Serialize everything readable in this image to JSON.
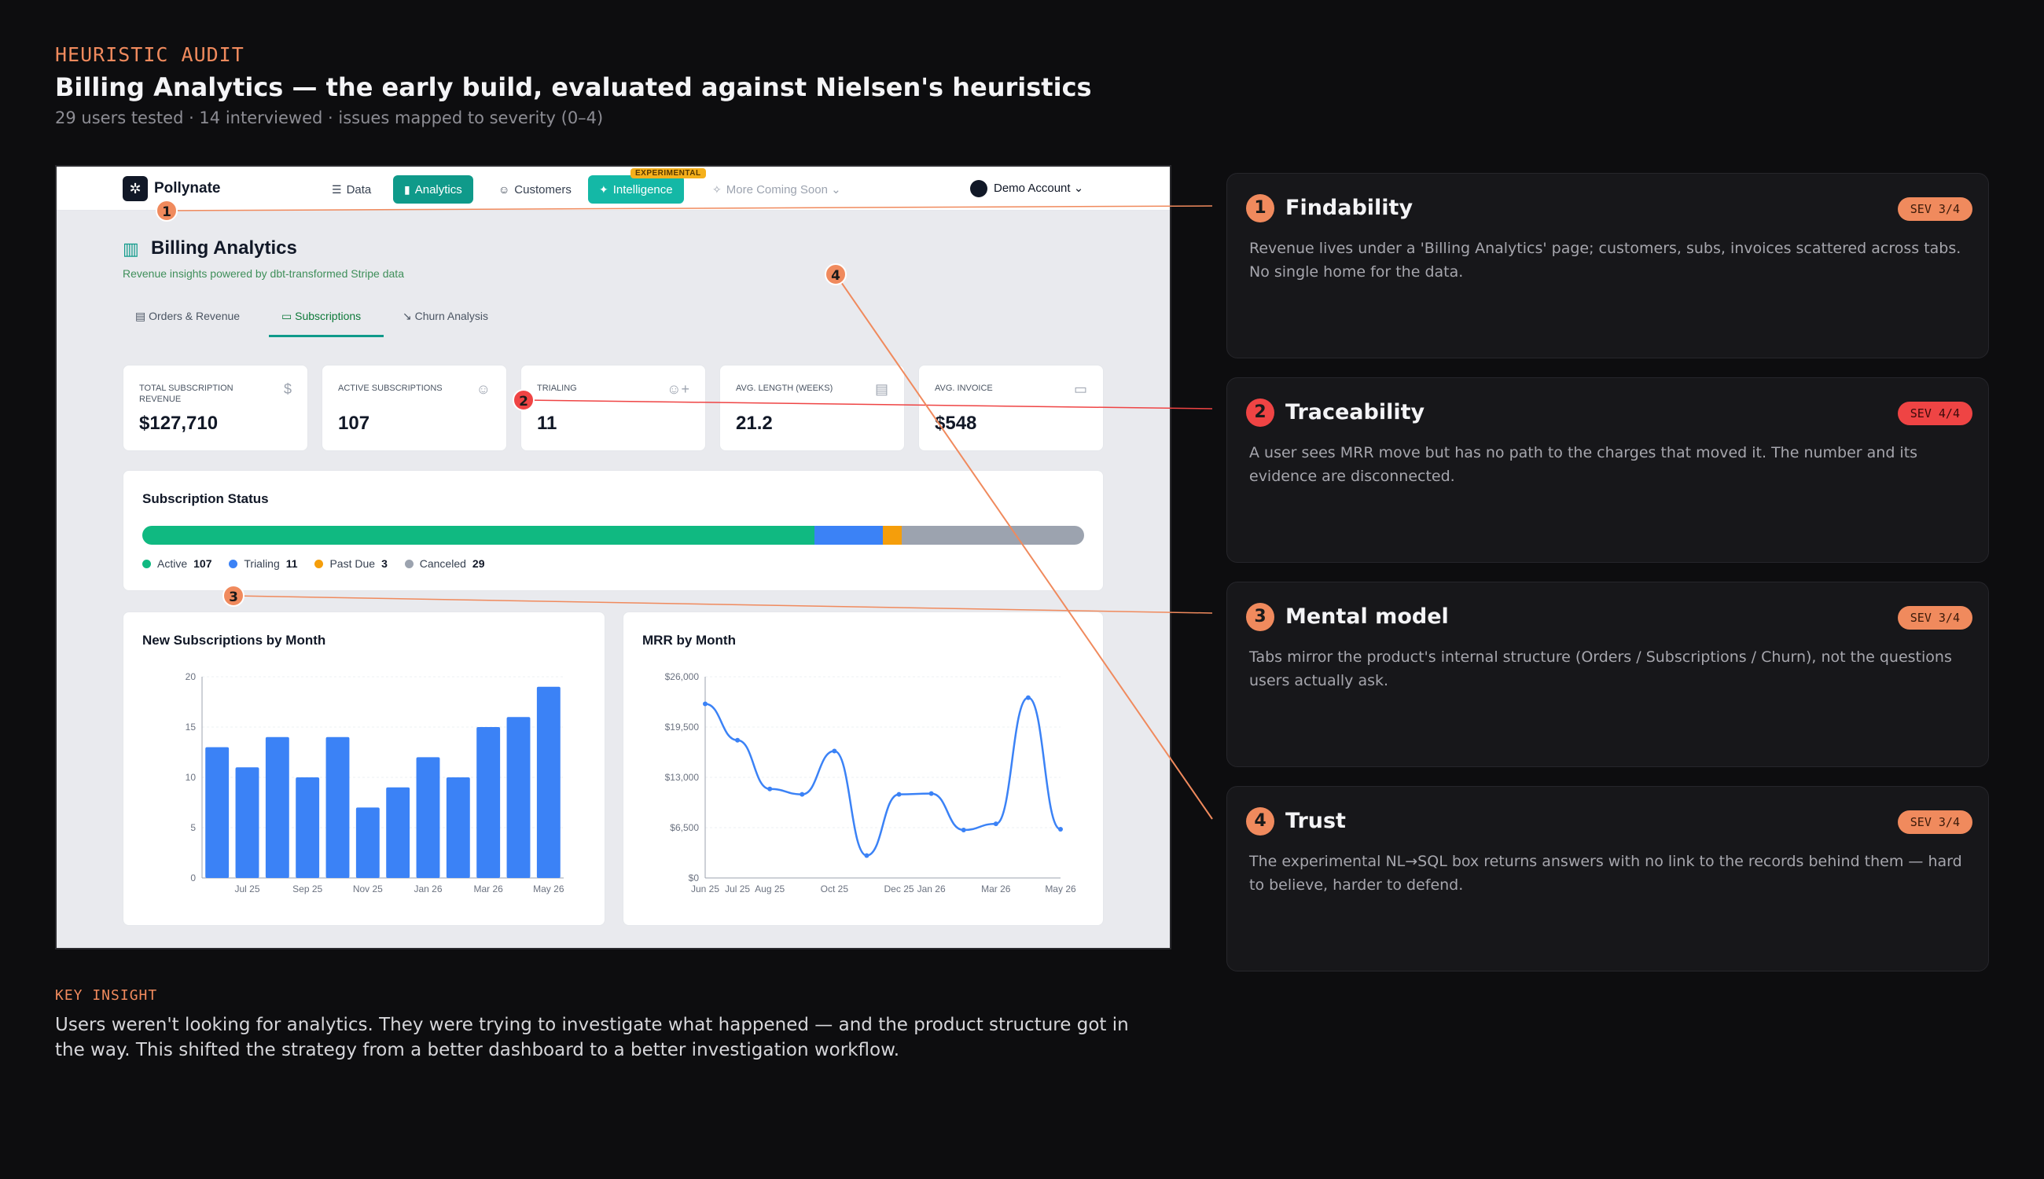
{
  "header": {
    "eyebrow": "HEURISTIC AUDIT",
    "title": "Billing Analytics — the early build, evaluated against Nielsen's heuristics",
    "subtitle": "29 users tested · 14 interviewed · issues mapped to severity (0–4)"
  },
  "app": {
    "logo": "Pollynate",
    "nav": {
      "data": "Data",
      "analytics": "Analytics",
      "customers": "Customers",
      "intelligence": "Intelligence",
      "experimental_badge": "EXPERIMENTAL",
      "more": "More Coming Soon",
      "account": "Demo Account"
    },
    "page_title": "Billing Analytics",
    "page_subtitle": "Revenue insights powered by dbt-transformed Stripe data",
    "tabs": {
      "orders": "Orders & Revenue",
      "subscriptions": "Subscriptions",
      "churn": "Churn Analysis"
    },
    "kpis": [
      {
        "label": "Total Subscription Revenue",
        "value": "$127,710",
        "icon": "dollar-icon"
      },
      {
        "label": "Active Subscriptions",
        "value": "107",
        "icon": "users-icon"
      },
      {
        "label": "Trialing",
        "value": "11",
        "icon": "user-plus-icon"
      },
      {
        "label": "Avg. Length (Weeks)",
        "value": "21.2",
        "icon": "document-icon"
      },
      {
        "label": "Avg. Invoice",
        "value": "$548",
        "icon": "card-icon"
      }
    ],
    "status": {
      "title": "Subscription Status",
      "segments": [
        {
          "name": "Active",
          "value": 107,
          "color": "#10b981"
        },
        {
          "name": "Trialing",
          "value": 11,
          "color": "#3b82f6"
        },
        {
          "name": "Past Due",
          "value": 3,
          "color": "#f59e0b"
        },
        {
          "name": "Canceled",
          "value": 29,
          "color": "#9ca3af"
        }
      ],
      "labels": {
        "active": "Active",
        "active_v": "107",
        "trialing": "Trialing",
        "trialing_v": "11",
        "pastdue": "Past Due",
        "pastdue_v": "3",
        "canceled": "Canceled",
        "canceled_v": "29"
      }
    }
  },
  "chart_data": [
    {
      "type": "bar",
      "title": "New Subscriptions by Month",
      "categories": [
        "Jun 25",
        "Jul 25",
        "Aug 25",
        "Sep 25",
        "Oct 25",
        "Nov 25",
        "Dec 25",
        "Jan 26",
        "Feb 26",
        "Mar 26",
        "Apr 26",
        "May 26"
      ],
      "tick_labels": [
        "Jul 25",
        "Sep 25",
        "Nov 25",
        "Jan 26",
        "Mar 26",
        "May 26"
      ],
      "values": [
        13,
        11,
        14,
        10,
        14,
        7,
        9,
        12,
        10,
        15,
        16,
        19
      ],
      "ylim": [
        0,
        20
      ],
      "yticks": [
        0,
        5,
        10,
        15,
        20
      ],
      "color": "#3b82f6"
    },
    {
      "type": "line",
      "title": "MRR by Month",
      "x_tick_labels": [
        "Jun 25",
        "Jul 25",
        "Aug 25",
        "Oct 25",
        "Dec 25",
        "Jan 26",
        "Mar 26",
        "May 26"
      ],
      "values": [
        22500,
        17800,
        11500,
        10800,
        16400,
        2900,
        10800,
        10900,
        6200,
        7000,
        23300,
        6300
      ],
      "ylim": [
        0,
        26000
      ],
      "ytick_labels": [
        "$0",
        "$6,500",
        "$13,000",
        "$19,500",
        "$26,000"
      ],
      "color": "#3b82f6"
    }
  ],
  "markers": [
    "1",
    "2",
    "3",
    "4"
  ],
  "audit": [
    {
      "num": "1",
      "title": "Findability",
      "sev": "SEV 3/4",
      "body": "Revenue lives under a 'Billing Analytics' page; customers, subs, invoices scattered across tabs. No single home for the data."
    },
    {
      "num": "2",
      "title": "Traceability",
      "sev": "SEV 4/4",
      "body": "A user sees MRR move but has no path to the charges that moved it. The number and its evidence are disconnected."
    },
    {
      "num": "3",
      "title": "Mental model",
      "sev": "SEV 3/4",
      "body": "Tabs mirror the product's internal structure (Orders / Subscriptions / Churn), not the questions users actually ask."
    },
    {
      "num": "4",
      "title": "Trust",
      "sev": "SEV 3/4",
      "body": "The experimental NL→SQL box returns answers with no link to the records behind them — hard to believe, harder to defend."
    }
  ],
  "insight": {
    "label": "KEY INSIGHT",
    "text": "Users weren't looking for analytics. They were trying to investigate what happened — and the product structure got in the way. This shifted the strategy from a better dashboard to a better investigation workflow."
  },
  "colors": {
    "accent": "#f08a5d",
    "severe": "#ef4444",
    "teal": "#0f9a8a"
  }
}
